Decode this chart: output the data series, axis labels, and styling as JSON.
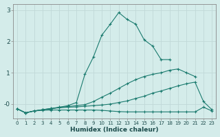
{
  "xlabel": "Humidex (Indice chaleur)",
  "bg_color": "#d4ecea",
  "line_color": "#1a7a6e",
  "grid_color": "#c0d8d8",
  "xlim": [
    -0.5,
    23.5
  ],
  "ylim": [
    -0.45,
    3.2
  ],
  "xticks": [
    0,
    1,
    2,
    3,
    4,
    5,
    6,
    7,
    8,
    9,
    10,
    11,
    12,
    13,
    14,
    15,
    16,
    17,
    18,
    19,
    20,
    21,
    22,
    23
  ],
  "yticks": [
    0,
    1,
    2,
    3
  ],
  "ytick_labels": [
    "-0",
    "1",
    "2",
    "3"
  ],
  "lines": [
    {
      "x": [
        0,
        1,
        2,
        3,
        4,
        5,
        6,
        7,
        8,
        9,
        10,
        11,
        12,
        13,
        14,
        15,
        16,
        17,
        18
      ],
      "y": [
        -0.15,
        -0.28,
        -0.22,
        -0.18,
        -0.16,
        -0.1,
        -0.05,
        0.05,
        0.95,
        1.5,
        2.2,
        2.55,
        2.92,
        2.7,
        2.55,
        2.05,
        1.85,
        1.42,
        1.42
      ],
      "marker": true
    },
    {
      "x": [
        0,
        1,
        2,
        3,
        4,
        5,
        6,
        7,
        8,
        9,
        10,
        11,
        12,
        13,
        14,
        15,
        16,
        17,
        18,
        19,
        20,
        21
      ],
      "y": [
        -0.15,
        -0.28,
        -0.22,
        -0.18,
        -0.14,
        -0.1,
        -0.08,
        -0.05,
        -0.02,
        0.08,
        0.22,
        0.35,
        0.5,
        0.65,
        0.78,
        0.88,
        0.95,
        1.0,
        1.08,
        1.12,
        1.0,
        0.88
      ],
      "marker": true
    },
    {
      "x": [
        0,
        1,
        2,
        3,
        4,
        5,
        6,
        7,
        8,
        9,
        10,
        11,
        12,
        13,
        14,
        15,
        16,
        17,
        18,
        19,
        20,
        21,
        22,
        23
      ],
      "y": [
        -0.15,
        -0.28,
        -0.22,
        -0.18,
        -0.14,
        -0.12,
        -0.1,
        -0.09,
        -0.07,
        -0.05,
        -0.03,
        0.0,
        0.05,
        0.1,
        0.18,
        0.25,
        0.35,
        0.42,
        0.5,
        0.58,
        0.65,
        0.7,
        0.08,
        -0.18
      ],
      "marker": true
    },
    {
      "x": [
        0,
        1,
        2,
        3,
        4,
        5,
        6,
        7,
        8,
        9,
        10,
        11,
        12,
        13,
        14,
        15,
        16,
        17,
        18,
        19,
        20,
        21,
        22,
        23
      ],
      "y": [
        -0.15,
        -0.28,
        -0.22,
        -0.2,
        -0.19,
        -0.19,
        -0.19,
        -0.19,
        -0.19,
        -0.19,
        -0.2,
        -0.22,
        -0.24,
        -0.25,
        -0.25,
        -0.25,
        -0.25,
        -0.25,
        -0.25,
        -0.25,
        -0.25,
        -0.25,
        -0.1,
        -0.22
      ],
      "marker": true
    }
  ]
}
